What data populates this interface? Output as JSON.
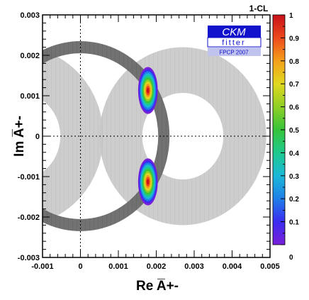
{
  "chart_data": {
    "type": "contour",
    "xlabel": "Re A̅+-",
    "ylabel": "Im A̅+-",
    "xlim": [
      -0.001,
      0.005
    ],
    "ylim": [
      -0.003,
      0.003
    ],
    "x_ticks": [
      -0.001,
      0,
      0.001,
      0.002,
      0.003,
      0.004,
      0.005
    ],
    "x_tick_labels": [
      "-0.001",
      "0",
      "0.001",
      "0.002",
      "0.003",
      "0.004",
      "0.005"
    ],
    "y_ticks": [
      -0.003,
      -0.002,
      -0.001,
      0,
      0.001,
      0.002,
      0.003
    ],
    "y_tick_labels": [
      "-0.003",
      "-0.002",
      "-0.001",
      "0",
      "0.001",
      "0.002",
      "0.003"
    ],
    "dashed_reference_lines": {
      "x": 0,
      "y": 0
    },
    "rings": [
      {
        "name": "dark",
        "color": "#6a6a6a",
        "center": [
          0,
          0
        ],
        "r_inner": 0.00205,
        "r_outer": 0.00235
      },
      {
        "name": "light",
        "color": "#c8c8c8",
        "center": [
          0.0027,
          0
        ],
        "r_inner": 0.00107,
        "r_outer": 0.0022
      },
      {
        "name": "light-left",
        "color": "#c8c8c8",
        "center": [
          -0.0016,
          0
        ],
        "r_inner": 0.00107,
        "r_outer": 0.0022
      }
    ],
    "blobs": [
      {
        "center": [
          0.00178,
          0.00113
        ],
        "dx": 0.00026,
        "dy": 0.00058,
        "peak": 0.95
      },
      {
        "center": [
          0.00178,
          -0.00113
        ],
        "dx": 0.00026,
        "dy": 0.00058,
        "peak": 0.95
      }
    ],
    "colorbar": {
      "title": "1-CL",
      "range": [
        0,
        1
      ],
      "ticks": [
        0,
        0.1,
        0.2,
        0.3,
        0.4,
        0.5,
        0.6,
        0.7,
        0.8,
        0.9,
        1
      ],
      "tick_labels": [
        "0",
        "0.1",
        "0.2",
        "0.3",
        "0.4",
        "0.5",
        "0.6",
        "0.7",
        "0.8",
        "0.9",
        "1"
      ],
      "colors": [
        "#7a1fd8",
        "#3a2cf0",
        "#1f7fe8",
        "#1bb8d8",
        "#1ec98e",
        "#36c43a",
        "#8fcf25",
        "#e0d820",
        "#f4a019",
        "#ec4a1c",
        "#c8101a"
      ]
    },
    "grid": false,
    "legend": "none"
  },
  "logo": {
    "main": "CKM",
    "sub": "fitter",
    "tag": "FPCP 2007"
  }
}
